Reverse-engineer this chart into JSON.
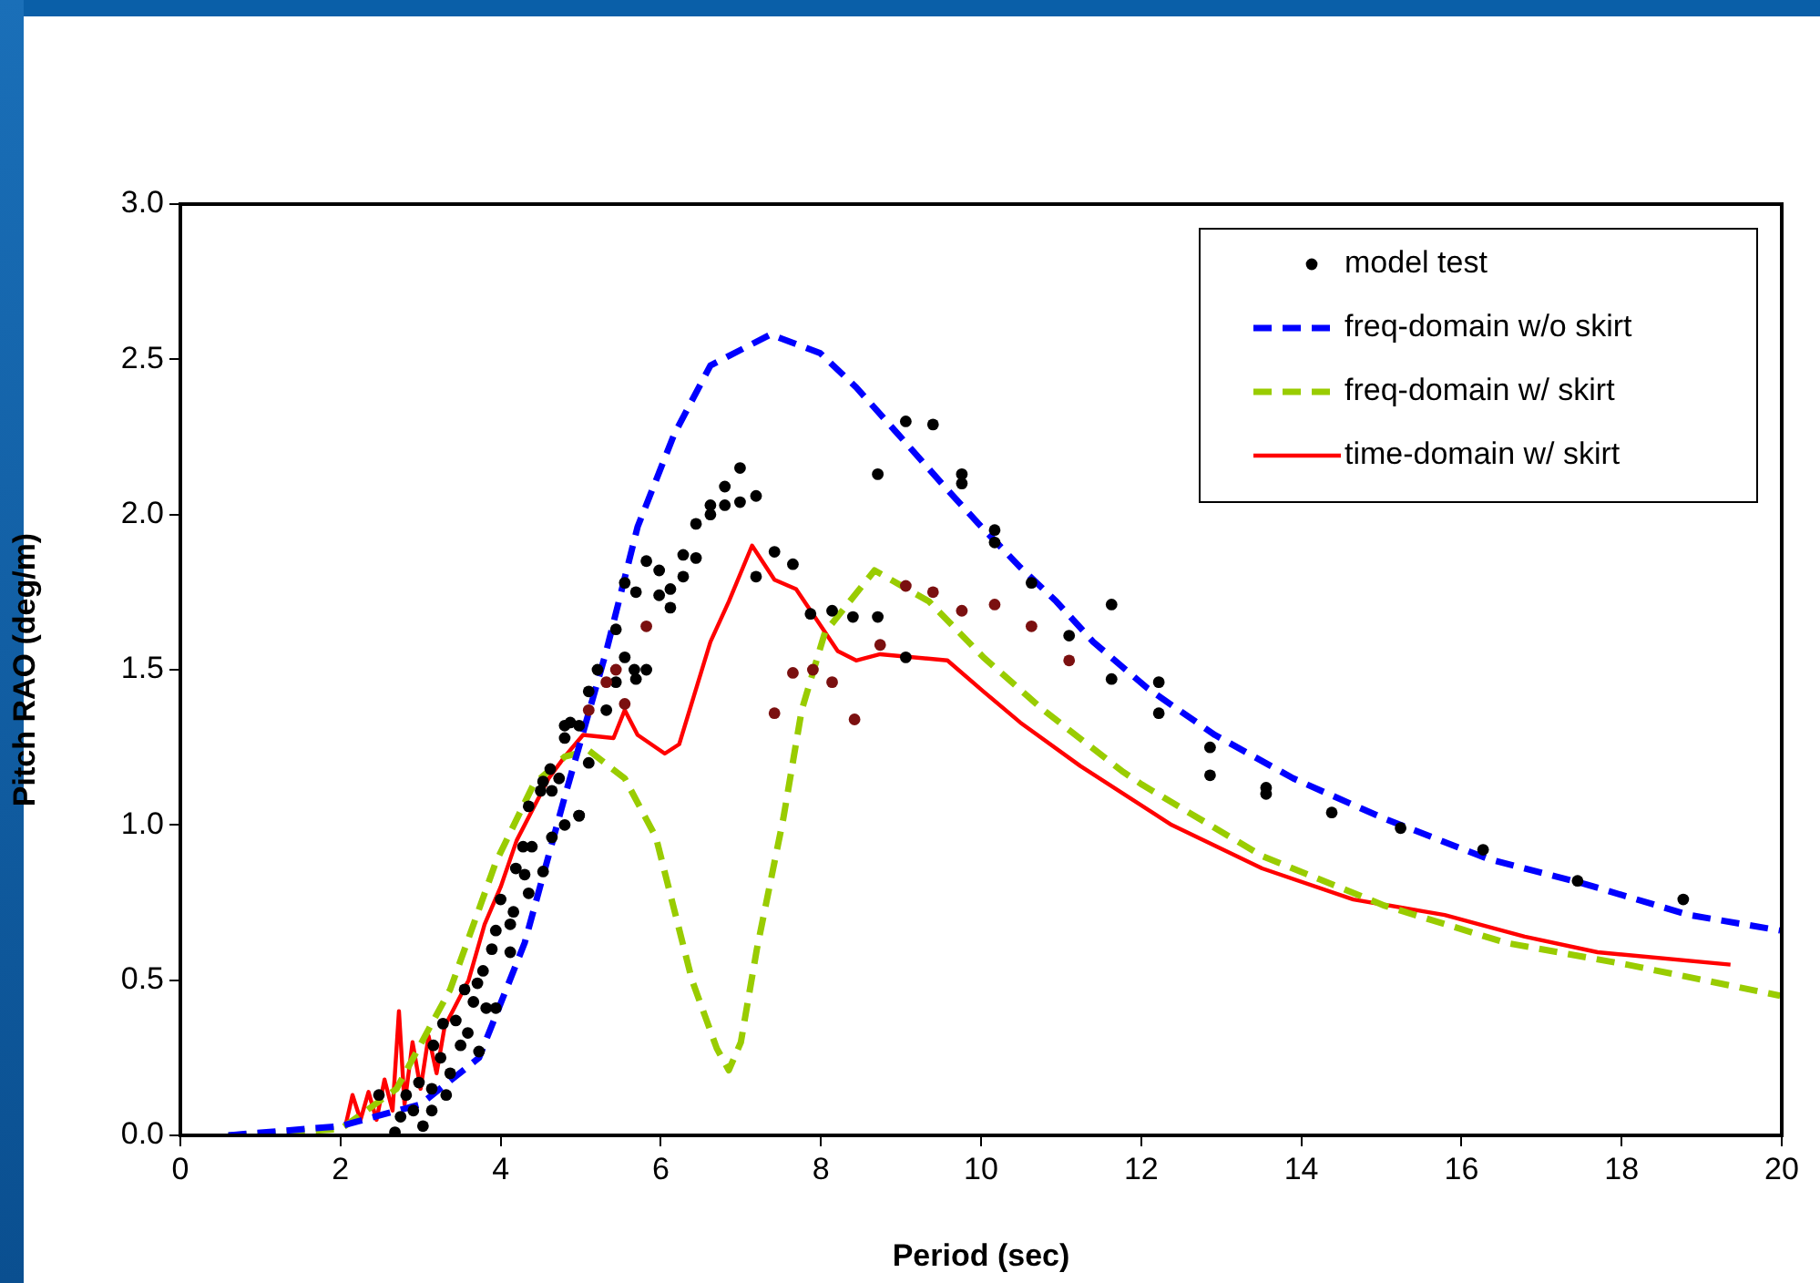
{
  "chart_data": {
    "type": "line",
    "xlabel": "Period (sec)",
    "ylabel": "Pitch RAO (deg/m)",
    "xlim": [
      0,
      20
    ],
    "xticks": [
      0,
      2,
      4,
      6,
      8,
      10,
      12,
      14,
      16,
      18,
      20
    ],
    "ylim": [
      0,
      3
    ],
    "yticks": [
      {
        "value": 0,
        "label": "0.0"
      },
      {
        "value": 0.5,
        "label": "0.5"
      },
      {
        "value": 1,
        "label": "1.0"
      },
      {
        "value": 1.5,
        "label": "1.5"
      },
      {
        "value": 2,
        "label": "2.0"
      },
      {
        "value": 2.5,
        "label": "2.5"
      },
      {
        "value": 3,
        "label": "3.0"
      }
    ],
    "grid": false,
    "legend": "top right",
    "series": [
      {
        "name": "model test",
        "type": "scatter",
        "marker": "circle",
        "color": "#000000",
        "x": [
          2.68,
          2.75,
          2.91,
          3.03,
          3.14,
          2.82,
          2.48,
          2.98,
          3.14,
          3.32,
          3.37,
          3.25,
          3.16,
          3.28,
          3.44,
          3.59,
          3.73,
          3.5,
          3.66,
          3.55,
          3.71,
          3.82,
          3.94,
          3.78,
          3.89,
          3.94,
          4.12,
          4.16,
          4.12,
          4.0,
          4.35,
          4.19,
          4.3,
          4.53,
          4.28,
          4.39,
          4.64,
          4.8,
          4.98,
          4.35,
          4.5,
          4.64,
          4.53,
          4.62,
          4.73,
          4.8,
          4.87,
          4.98,
          4.8,
          5.1,
          4.98,
          5.1,
          5.21,
          5.44,
          5.55,
          5.32,
          5.44,
          5.55,
          5.67,
          5.82,
          5.55,
          5.69,
          5.82,
          5.98,
          5.98,
          6.12,
          6.12,
          6.28,
          6.28,
          6.44,
          6.44,
          6.62,
          6.62,
          6.8,
          6.8,
          6.99,
          6.99,
          7.19,
          7.19,
          7.42,
          7.65,
          7.87,
          8.14,
          8.4,
          8.71,
          8.71,
          9.06,
          9.4,
          9.06,
          9.76,
          9.76,
          10.17,
          10.17,
          10.63,
          11.63,
          11.1,
          11.63,
          5.69,
          5.82,
          7.42,
          7.65,
          7.9,
          8.14,
          8.42,
          8.74,
          9.06,
          9.4,
          9.76,
          10.17,
          10.63,
          11.1,
          5.44,
          5.32,
          5.1,
          12.22,
          12.22,
          12.86,
          12.86,
          13.56,
          13.56,
          14.38,
          15.24,
          16.27,
          17.45,
          18.77
        ],
        "values": [
          0.01,
          0.06,
          0.08,
          0.03,
          0.08,
          0.13,
          0.13,
          0.17,
          0.15,
          0.13,
          0.2,
          0.25,
          0.29,
          0.36,
          0.37,
          0.33,
          0.27,
          0.29,
          0.43,
          0.47,
          0.49,
          0.41,
          0.41,
          0.53,
          0.6,
          0.66,
          0.68,
          0.72,
          0.59,
          0.76,
          0.78,
          0.86,
          0.84,
          0.85,
          0.93,
          0.93,
          0.96,
          1.0,
          1.03,
          1.06,
          1.11,
          1.11,
          1.14,
          1.18,
          1.15,
          1.32,
          1.33,
          1.32,
          1.28,
          1.2,
          1.03,
          1.43,
          1.5,
          1.63,
          1.54,
          1.37,
          1.46,
          1.39,
          1.5,
          1.5,
          1.78,
          1.75,
          1.85,
          1.82,
          1.74,
          1.76,
          1.7,
          1.87,
          1.8,
          1.86,
          1.97,
          2.03,
          2.0,
          2.09,
          2.03,
          2.15,
          2.04,
          2.06,
          1.8,
          1.88,
          1.84,
          1.68,
          1.69,
          1.67,
          1.67,
          2.13,
          2.3,
          2.29,
          1.54,
          2.13,
          2.1,
          1.95,
          1.91,
          1.78,
          1.71,
          1.61,
          1.47,
          1.47,
          1.64,
          1.36,
          1.49,
          1.5,
          1.46,
          1.34,
          1.58,
          1.77,
          1.75,
          1.69,
          1.71,
          1.64,
          1.53,
          1.5,
          1.46,
          1.37,
          1.46,
          1.36,
          1.25,
          1.16,
          1.12,
          1.1,
          1.04,
          0.99,
          0.92,
          0.82,
          0.76
        ],
        "colors": [
          "#000000",
          "#000000",
          "#000000",
          "#000000",
          "#000000",
          "#000000",
          "#000000",
          "#000000",
          "#000000",
          "#000000",
          "#000000",
          "#000000",
          "#000000",
          "#000000",
          "#000000",
          "#000000",
          "#000000",
          "#000000",
          "#000000",
          "#000000",
          "#000000",
          "#000000",
          "#000000",
          "#000000",
          "#000000",
          "#000000",
          "#000000",
          "#000000",
          "#000000",
          "#000000",
          "#000000",
          "#000000",
          "#000000",
          "#000000",
          "#000000",
          "#000000",
          "#000000",
          "#000000",
          "#000000",
          "#000000",
          "#000000",
          "#000000",
          "#000000",
          "#000000",
          "#000000",
          "#000000",
          "#000000",
          "#000000",
          "#000000",
          "#000000",
          "#000000",
          "#000000",
          "#000000",
          "#000000",
          "#000000",
          "#000000",
          "#000000",
          "#7b1010",
          "#000000",
          "#000000",
          "#000000",
          "#000000",
          "#000000",
          "#000000",
          "#000000",
          "#000000",
          "#000000",
          "#000000",
          "#000000",
          "#000000",
          "#000000",
          "#000000",
          "#000000",
          "#000000",
          "#000000",
          "#000000",
          "#000000",
          "#000000",
          "#000000",
          "#000000",
          "#000000",
          "#000000",
          "#000000",
          "#000000",
          "#000000",
          "#000000",
          "#000000",
          "#000000",
          "#000000",
          "#000000",
          "#000000",
          "#000000",
          "#000000",
          "#000000",
          "#000000",
          "#000000",
          "#000000",
          "#000000",
          "#7b1010",
          "#7b1010",
          "#7b1010",
          "#7b1010",
          "#7b1010",
          "#7b1010",
          "#7b1010",
          "#7b1010",
          "#7b1010",
          "#7b1010",
          "#7b1010",
          "#7b1010",
          "#7b1010",
          "#7b1010",
          "#7b1010",
          "#7b1010",
          "#000000",
          "#000000",
          "#000000",
          "#000000",
          "#000000",
          "#000000",
          "#000000",
          "#000000",
          "#000000",
          "#000000",
          "#000000"
        ]
      },
      {
        "name": "freq-domain w/o skirt",
        "line_style": "dashed",
        "color": "#0000ff",
        "x": [
          0.6,
          2,
          3,
          3.73,
          4.3,
          4.8,
          5.32,
          5.71,
          6.17,
          6.62,
          7.37,
          7.99,
          8.44,
          8.96,
          9.51,
          9.97,
          10.49,
          10.94,
          11.4,
          12.08,
          12.92,
          13.9,
          15.04,
          16.34,
          17.54,
          18.84,
          19.98
        ],
        "values": [
          0,
          0.03,
          0.1,
          0.25,
          0.62,
          1.09,
          1.56,
          1.96,
          2.26,
          2.48,
          2.58,
          2.52,
          2.41,
          2.26,
          2.1,
          1.97,
          1.83,
          1.72,
          1.59,
          1.44,
          1.29,
          1.15,
          1.02,
          0.89,
          0.81,
          0.71,
          0.66
        ]
      },
      {
        "name": "freq-domain w/ skirt",
        "line_style": "dashed",
        "color": "#99cc00",
        "x": [
          0.6,
          2,
          2.7,
          3.37,
          3.94,
          4.41,
          4.8,
          5.1,
          5.55,
          5.94,
          6.39,
          6.7,
          6.85,
          7.0,
          7.2,
          7.53,
          7.76,
          8.05,
          8.67,
          9.35,
          10.03,
          10.78,
          11.78,
          12.01,
          13.51,
          15.04,
          16.56,
          18.07,
          19.98
        ],
        "values": [
          0,
          0.02,
          0.15,
          0.47,
          0.88,
          1.13,
          1.22,
          1.24,
          1.15,
          0.96,
          0.5,
          0.28,
          0.21,
          0.3,
          0.6,
          1.02,
          1.37,
          1.62,
          1.82,
          1.72,
          1.54,
          1.37,
          1.17,
          1.13,
          0.9,
          0.74,
          0.62,
          0.55,
          0.45
        ]
      },
      {
        "name": "time-domain w/ skirt",
        "line_style": "solid",
        "color": "#ff0000",
        "x": [
          2.07,
          2.15,
          2.25,
          2.35,
          2.45,
          2.55,
          2.65,
          2.73,
          2.8,
          2.9,
          3.0,
          3.1,
          3.2,
          3.3,
          3.4,
          3.6,
          3.8,
          4.0,
          4.2,
          4.4,
          4.6,
          4.8,
          5.03,
          5.41,
          5.55,
          5.71,
          6.05,
          6.23,
          6.62,
          6.85,
          7.14,
          7.42,
          7.69,
          8.21,
          8.44,
          8.74,
          9.58,
          10.03,
          10.49,
          11.24,
          12.38,
          13.51,
          14.65,
          15.79,
          16.79,
          17.7,
          19.36
        ],
        "values": [
          0.04,
          0.13,
          0.05,
          0.14,
          0.05,
          0.18,
          0.08,
          0.4,
          0.1,
          0.3,
          0.15,
          0.32,
          0.2,
          0.35,
          0.4,
          0.5,
          0.68,
          0.8,
          0.95,
          1.05,
          1.15,
          1.22,
          1.29,
          1.28,
          1.37,
          1.29,
          1.23,
          1.26,
          1.59,
          1.72,
          1.9,
          1.79,
          1.76,
          1.56,
          1.53,
          1.55,
          1.53,
          1.43,
          1.33,
          1.19,
          1.0,
          0.86,
          0.76,
          0.71,
          0.64,
          0.59,
          0.55
        ]
      }
    ]
  }
}
